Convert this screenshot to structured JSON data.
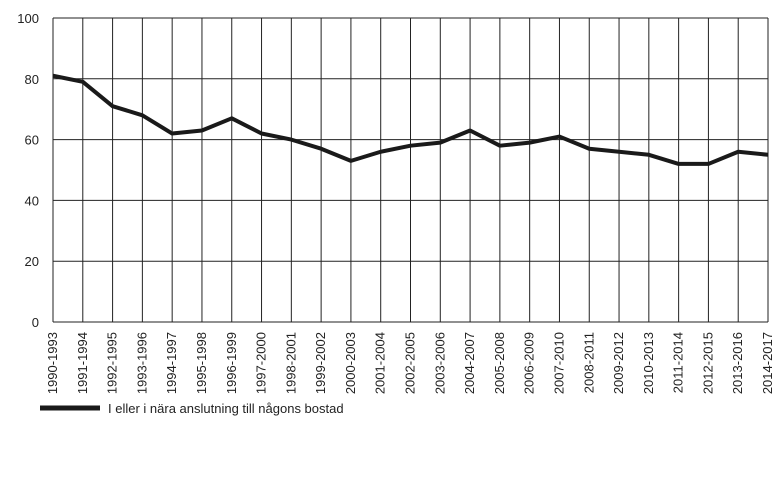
{
  "chart_data": {
    "type": "line",
    "categories": [
      "1990-1993",
      "1991-1994",
      "1992-1995",
      "1993-1996",
      "1994-1997",
      "1995-1998",
      "1996-1999",
      "1997-2000",
      "1998-2001",
      "1999-2002",
      "2000-2003",
      "2001-2004",
      "2002-2005",
      "2003-2006",
      "2004-2007",
      "2005-2008",
      "2006-2009",
      "2007-2010",
      "2008-2011",
      "2009-2012",
      "2010-2013",
      "2011-2014",
      "2012-2015",
      "2013-2016",
      "2014-2017"
    ],
    "series": [
      {
        "name": "I eller i nära anslutning till någons bostad",
        "color": "#1a1a1a",
        "values": [
          81,
          79,
          71,
          68,
          62,
          63,
          67,
          62,
          60,
          57,
          53,
          56,
          58,
          59,
          63,
          58,
          59,
          61,
          57,
          56,
          55,
          52,
          52,
          56,
          55
        ]
      }
    ],
    "ylim": [
      0,
      100
    ],
    "yticks": [
      0,
      20,
      40,
      60,
      80,
      100
    ],
    "grid": true,
    "legend": "bottom"
  }
}
